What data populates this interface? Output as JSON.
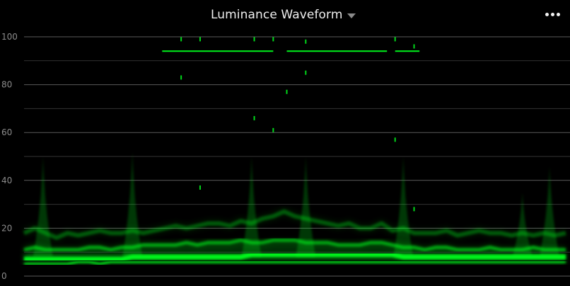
{
  "header": {
    "title": "Luminance Waveform",
    "dropdown_icon": "caret-down-icon",
    "more_icon": "more-horizontal-icon"
  },
  "colors": {
    "background": "#000000",
    "trace": "#00ff1e",
    "gridline": "#5a5a5a",
    "minor_gridline": "#333333",
    "tick_label": "#8c8c8c"
  },
  "chart_data": {
    "type": "area",
    "ylim": [
      0,
      100
    ],
    "yticks": [
      0,
      20,
      40,
      60,
      80,
      100
    ],
    "ytick_labels": [
      "0",
      "20",
      "40",
      "60",
      "80",
      "100"
    ],
    "minor_gridlines": [
      10,
      30,
      50,
      70,
      90
    ],
    "grid": true,
    "legend": "none",
    "x": [
      0,
      2,
      4,
      6,
      8,
      10,
      12,
      14,
      16,
      18,
      20,
      22,
      24,
      26,
      28,
      30,
      32,
      34,
      36,
      38,
      40,
      42,
      44,
      46,
      48,
      50,
      52,
      54,
      56,
      58,
      60,
      62,
      64,
      66,
      68,
      70,
      72,
      74,
      76,
      78,
      80,
      82,
      84,
      86,
      88,
      90,
      92,
      94,
      96,
      98,
      100
    ],
    "series": [
      {
        "values": [
          7,
          7,
          7,
          7,
          7,
          7,
          7,
          7,
          7,
          7,
          8,
          8,
          8,
          8,
          8,
          8,
          8,
          8,
          8,
          8,
          8,
          9,
          9,
          9,
          9,
          9,
          9,
          9,
          9,
          9,
          9,
          9,
          9,
          9,
          9,
          8,
          8,
          8,
          8,
          8,
          8,
          8,
          8,
          8,
          8,
          8,
          8,
          8,
          8,
          8,
          8
        ]
      },
      {
        "values": [
          11,
          12,
          11,
          11,
          11,
          11,
          12,
          12,
          11,
          12,
          12,
          13,
          13,
          13,
          13,
          14,
          13,
          14,
          14,
          14,
          15,
          14,
          14,
          15,
          15,
          15,
          14,
          14,
          14,
          13,
          13,
          13,
          14,
          14,
          13,
          12,
          12,
          11,
          12,
          12,
          11,
          11,
          11,
          12,
          11,
          11,
          11,
          12,
          11,
          11,
          11
        ]
      },
      {
        "values": [
          18,
          20,
          18,
          16,
          18,
          17,
          18,
          19,
          18,
          18,
          19,
          18,
          19,
          20,
          21,
          20,
          21,
          22,
          22,
          21,
          23,
          22,
          24,
          25,
          27,
          25,
          24,
          23,
          22,
          21,
          22,
          20,
          20,
          22,
          19,
          20,
          18,
          18,
          18,
          19,
          17,
          18,
          19,
          18,
          18,
          17,
          18,
          17,
          18,
          17,
          18
        ]
      },
      {
        "values": [
          5,
          5,
          5,
          5,
          5,
          6,
          6,
          5,
          6,
          6,
          6,
          6,
          6,
          6,
          6,
          6,
          6,
          6,
          6,
          6,
          6,
          6,
          6,
          6,
          6,
          6,
          6,
          6,
          6,
          6,
          6,
          6,
          6,
          6,
          6,
          6,
          6,
          6,
          6,
          6,
          6,
          6,
          6,
          6,
          6,
          6,
          6,
          6,
          6,
          6,
          6
        ]
      }
    ],
    "peaks": [
      {
        "x": 3.5,
        "y": 50
      },
      {
        "x": 20,
        "y": 52
      },
      {
        "x": 42,
        "y": 50
      },
      {
        "x": 52,
        "y": 50
      },
      {
        "x": 70,
        "y": 50
      },
      {
        "x": 92,
        "y": 35
      },
      {
        "x": 97,
        "y": 46
      }
    ],
    "highlight_segments": [
      {
        "x_start": 25.5,
        "x_end": 46,
        "y": 94
      },
      {
        "x_start": 48.5,
        "x_end": 67,
        "y": 94
      },
      {
        "x_start": 68.5,
        "x_end": 73,
        "y": 94
      }
    ],
    "specks": [
      {
        "x": 29,
        "y": 83
      },
      {
        "x": 32.5,
        "y": 37
      },
      {
        "x": 42.5,
        "y": 66
      },
      {
        "x": 46,
        "y": 61
      },
      {
        "x": 48.5,
        "y": 77
      },
      {
        "x": 52,
        "y": 85
      },
      {
        "x": 68.5,
        "y": 57
      },
      {
        "x": 72,
        "y": 28
      },
      {
        "x": 29,
        "y": 99
      },
      {
        "x": 32.5,
        "y": 99
      },
      {
        "x": 42.5,
        "y": 99
      },
      {
        "x": 46,
        "y": 99
      },
      {
        "x": 52,
        "y": 98
      },
      {
        "x": 68.5,
        "y": 99
      },
      {
        "x": 72,
        "y": 96
      }
    ]
  }
}
